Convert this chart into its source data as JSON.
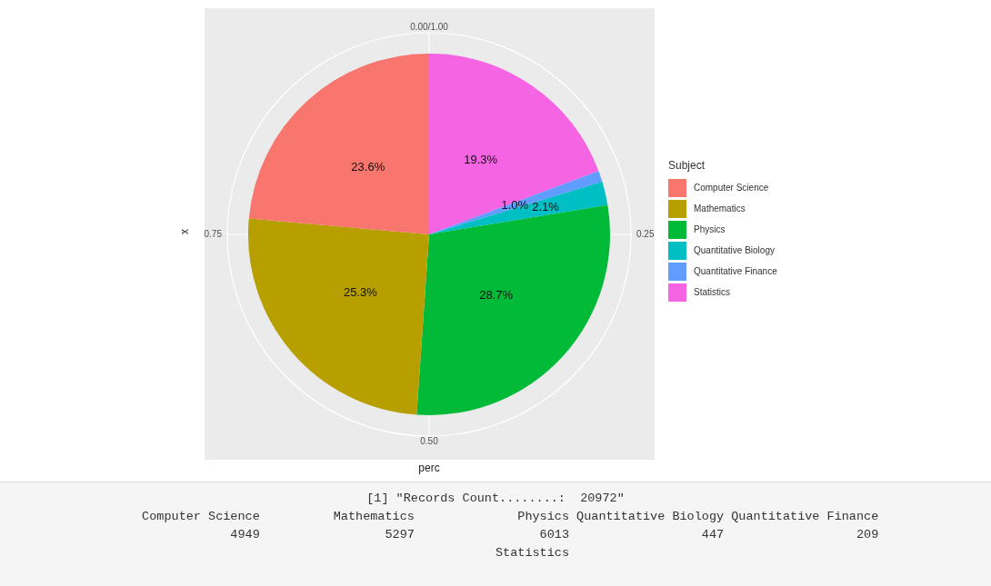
{
  "chart_data": {
    "type": "pie",
    "xlabel": "perc",
    "ylabel": "x",
    "legend_title": "Subject",
    "legend": "right",
    "categories": [
      "Computer Science",
      "Mathematics",
      "Physics",
      "Quantitative Biology",
      "Quantitative Finance",
      "Statistics"
    ],
    "values": [
      23.6,
      25.3,
      28.7,
      2.1,
      1.0,
      19.3
    ],
    "value_labels": [
      "23.6%",
      "25.3%",
      "28.7%",
      "2.1%",
      "1.0%",
      "19.3%"
    ],
    "colors": [
      "#f8766d",
      "#b79f00",
      "#00ba38",
      "#00bfc4",
      "#619cff",
      "#f564e3"
    ],
    "annotations": [
      "0.00/1.00",
      "0.25",
      "0.50",
      "0.75",
      "[1] \"Records Count........:  20972\"\n    Computer Science          Mathematics              Physics Quantitative Biology Quantitative Finance\n                4949                 5297                 6013                  447                  209\n          Statistics"
    ]
  }
}
